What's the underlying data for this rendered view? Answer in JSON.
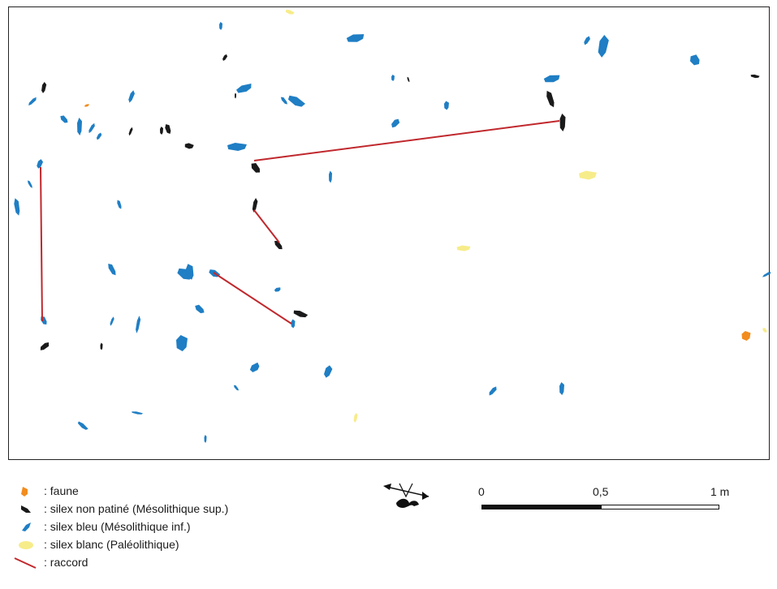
{
  "colors": {
    "faune": "#f28c1e",
    "silex_non_patine": "#1a1a1a",
    "silex_bleu": "#1f7ec4",
    "silex_blanc": "#f7ec8a",
    "raccord": "#c0282d"
  },
  "legend": [
    {
      "key": "faune",
      "icon": "orange-blob-icon",
      "label": ": faune"
    },
    {
      "key": "silex_non_patine",
      "icon": "black-flint-icon",
      "label": ": silex non patiné (Mésolithique sup.)"
    },
    {
      "key": "silex_bleu",
      "icon": "blue-flint-icon",
      "label": ": silex bleu (Mésolithique inf.)"
    },
    {
      "key": "silex_blanc",
      "icon": "yellow-flint-icon",
      "label": ": silex blanc (Paléolithique)"
    },
    {
      "key": "raccord",
      "icon": "red-line-icon",
      "label": ": raccord"
    }
  ],
  "scale": {
    "ticks": [
      "0",
      "0,5",
      "1 m"
    ]
  },
  "compass": {
    "icon": "north-arrow-icon"
  }
}
